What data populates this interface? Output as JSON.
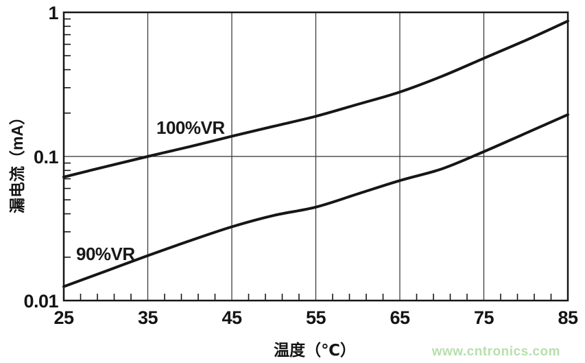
{
  "watermark": {
    "text": "www.cntronics.com",
    "color": "#b7dfac"
  },
  "chart_data": {
    "type": "line",
    "title": "",
    "xlabel": "温度（℃）",
    "ylabel": "漏电流（mA）",
    "x_scale": "linear",
    "y_scale": "log",
    "xlim": [
      25,
      85
    ],
    "ylim": [
      0.01,
      1
    ],
    "x": [
      25,
      30,
      35,
      40,
      45,
      50,
      55,
      60,
      65,
      70,
      75,
      80,
      85
    ],
    "series": [
      {
        "name": "100%VR",
        "values": [
          0.072,
          0.085,
          0.1,
          0.117,
          0.138,
          0.162,
          0.19,
          0.23,
          0.28,
          0.36,
          0.48,
          0.64,
          0.87
        ]
      },
      {
        "name": "90%VR",
        "values": [
          0.0125,
          0.016,
          0.0205,
          0.026,
          0.0325,
          0.039,
          0.0445,
          0.055,
          0.068,
          0.082,
          0.108,
          0.145,
          0.195
        ]
      }
    ],
    "x_ticks": [
      25,
      35,
      45,
      55,
      65,
      75,
      85
    ],
    "x_minor_tick_step": 2,
    "y_ticks": [
      {
        "label": "1",
        "value": 1
      },
      {
        "label": "0.1",
        "value": 0.1
      },
      {
        "label": "0.01",
        "value": 0.01
      }
    ],
    "grid_x": [
      35,
      45,
      55,
      65,
      75
    ],
    "grid_y": [
      0.1
    ],
    "legend_position": "inline-curve-labels",
    "line_color": "#161616",
    "axis_color": "#161616",
    "grid_color": "#2e2e2e"
  }
}
